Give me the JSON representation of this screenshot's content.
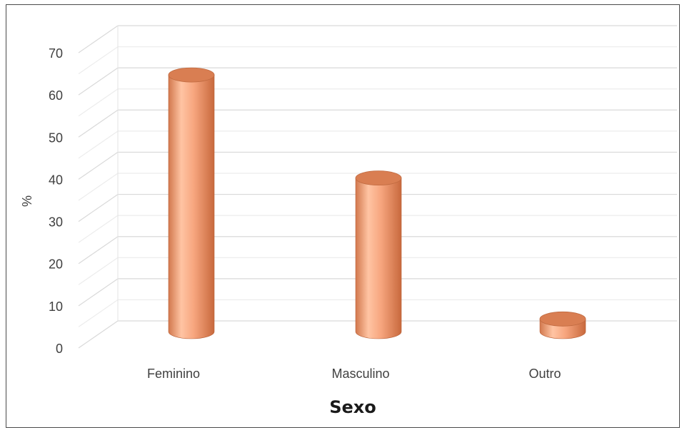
{
  "chart_data": {
    "type": "bar",
    "categories": [
      "Feminino",
      "Masculino",
      "Outro"
    ],
    "values": [
      61,
      36.5,
      3
    ],
    "xlabel": "Sexo",
    "ylabel": "%",
    "ylim": [
      0,
      70
    ],
    "yticks": [
      "0",
      "10",
      "20",
      "30",
      "40",
      "50",
      "60",
      "70"
    ],
    "grid": true,
    "style": "3d-cylinder",
    "bar_color": "#F4A57E"
  }
}
